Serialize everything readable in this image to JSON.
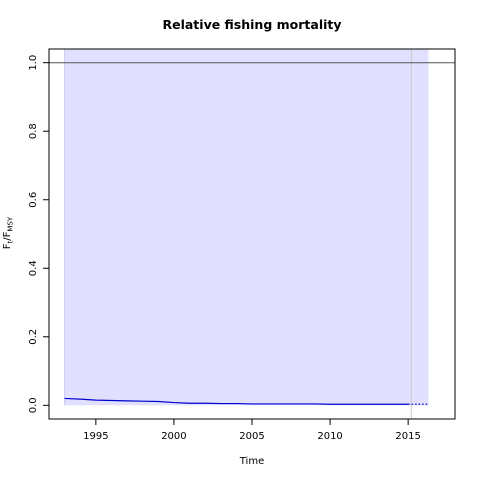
{
  "chart_data": {
    "type": "line",
    "title": "Relative fishing mortality",
    "xlabel": "Time",
    "ylabel": "F",
    "ylabel_sub": "t",
    "ylabel_sep": "/F",
    "ylabel_sub2": "MSY",
    "xlim": [
      1992,
      2018
    ],
    "ylim": [
      -0.04,
      1.04
    ],
    "x_ticks": [
      1995,
      2000,
      2005,
      2010,
      2015
    ],
    "y_ticks": [
      0.0,
      0.2,
      0.4,
      0.6,
      0.8,
      1.0
    ],
    "y_tick_labels": [
      "0.0",
      "0.2",
      "0.4",
      "0.6",
      "0.8",
      "1.0"
    ],
    "reference_line": 1.0,
    "confidence_band": {
      "x": [
        1993,
        2016.3
      ],
      "lower": 0.0,
      "upper": 1.04
    },
    "data_end_line": 2015.2,
    "series": [
      {
        "color": "#0000cc",
        "x": [
          1993,
          1994,
          1995,
          1996,
          1997,
          1998,
          1999,
          2000,
          2001,
          2002,
          2003,
          2004,
          2005,
          2006,
          2007,
          2008,
          2009,
          2010,
          2011,
          2012,
          2013,
          2014,
          2015
        ],
        "y": [
          0.02,
          0.018,
          0.015,
          0.014,
          0.013,
          0.012,
          0.011,
          0.008,
          0.006,
          0.006,
          0.005,
          0.005,
          0.004,
          0.004,
          0.004,
          0.004,
          0.004,
          0.003,
          0.003,
          0.003,
          0.003,
          0.003,
          0.003
        ]
      },
      {
        "color": "#0000cc",
        "dashed": true,
        "x": [
          2015,
          2015.5,
          2016,
          2016.3
        ],
        "y": [
          0.003,
          0.003,
          0.003,
          0.003
        ]
      }
    ],
    "colors": {
      "band": "#e1e1ff",
      "band_edge": "#c8c8f0",
      "reference": "#555555",
      "end_line": "#c8c8c8"
    }
  }
}
